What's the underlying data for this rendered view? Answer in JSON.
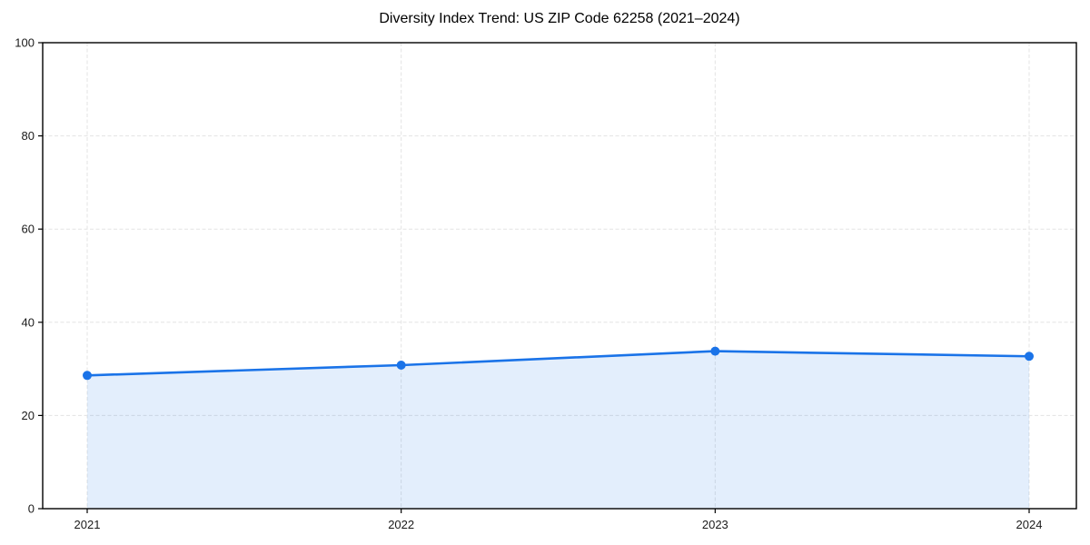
{
  "chart_data": {
    "type": "area",
    "title": "Diversity Index Trend: US ZIP Code 62258 (2021–2024)",
    "categories": [
      "2021",
      "2022",
      "2023",
      "2024"
    ],
    "series": [
      {
        "name": "Diversity Index",
        "values": [
          28.6,
          30.8,
          33.8,
          32.7
        ]
      }
    ],
    "xlabel": "",
    "ylabel": "",
    "ylim": [
      0,
      100
    ],
    "yticks": [
      0,
      20,
      40,
      60,
      80,
      100
    ],
    "grid": true,
    "grid_style": "dashed",
    "legend_position": "none",
    "colors": {
      "line": "#1a73e8",
      "marker": "#1a73e8",
      "area_fill": "rgba(26,115,232,0.12)",
      "grid": "#e3e3e3",
      "spine": "#000000",
      "tick_label": "#1a1a1a",
      "title": "#000000",
      "background": "#ffffff"
    }
  }
}
